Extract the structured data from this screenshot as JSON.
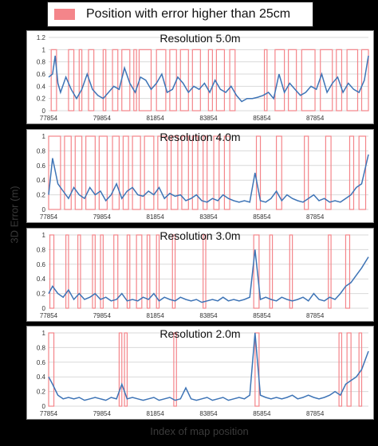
{
  "legend": {
    "label": "Position with error higher than 25cm",
    "color": "#f4858a"
  },
  "ylabel": "3D Error (m)",
  "xlabel": "Index of map position",
  "colors": {
    "line": "#3e74b6",
    "bars": "#f4858a",
    "grid": "#d9d9d9"
  },
  "chart_data": [
    {
      "type": "line",
      "title": "Resolution 5.0m",
      "x_ticks": [
        "77854",
        "79854",
        "81854",
        "83854",
        "85854",
        "87854"
      ],
      "y_ticks": [
        "0",
        "0.2",
        "0.4",
        "0.6",
        "0.8",
        "1",
        "1.2"
      ],
      "xlim": [
        77854,
        89854
      ],
      "ylim": [
        0,
        1.2
      ],
      "series": [
        {
          "type": "line",
          "x": [
            77854,
            78000,
            78100,
            78200,
            78300,
            78500,
            78700,
            78900,
            79100,
            79300,
            79500,
            79700,
            79900,
            80100,
            80300,
            80500,
            80700,
            80900,
            81100,
            81300,
            81500,
            81700,
            81900,
            82100,
            82300,
            82500,
            82700,
            82900,
            83100,
            83300,
            83500,
            83700,
            83900,
            84100,
            84300,
            84500,
            84700,
            84900,
            85100,
            85300,
            85500,
            85700,
            85900,
            86100,
            86300,
            86500,
            86700,
            86900,
            87100,
            87300,
            87500,
            87700,
            87900,
            88100,
            88300,
            88500,
            88700,
            88900,
            89100,
            89300,
            89500,
            89700,
            89854
          ],
          "y": [
            0.55,
            0.6,
            0.9,
            0.45,
            0.3,
            0.55,
            0.35,
            0.2,
            0.35,
            0.6,
            0.35,
            0.25,
            0.2,
            0.3,
            0.4,
            0.35,
            0.7,
            0.45,
            0.3,
            0.55,
            0.5,
            0.35,
            0.45,
            0.6,
            0.3,
            0.35,
            0.55,
            0.45,
            0.3,
            0.4,
            0.35,
            0.45,
            0.3,
            0.5,
            0.35,
            0.3,
            0.4,
            0.25,
            0.15,
            0.2,
            0.2,
            0.22,
            0.25,
            0.3,
            0.2,
            0.6,
            0.3,
            0.45,
            0.35,
            0.25,
            0.3,
            0.4,
            0.35,
            0.6,
            0.3,
            0.45,
            0.55,
            0.3,
            0.45,
            0.35,
            0.3,
            0.5,
            0.9
          ]
        },
        {
          "type": "bars",
          "threshold": 0.25,
          "spans": [
            [
              77950,
              78150
            ],
            [
              78600,
              78800
            ],
            [
              79000,
              79100
            ],
            [
              79350,
              79550
            ],
            [
              79900,
              80000
            ],
            [
              80250,
              80450
            ],
            [
              80600,
              80900
            ],
            [
              81050,
              81150
            ],
            [
              81250,
              81700
            ],
            [
              81900,
              82250
            ],
            [
              82400,
              82650
            ],
            [
              82800,
              83100
            ],
            [
              83250,
              83550
            ],
            [
              83850,
              84000
            ],
            [
              84150,
              84450
            ],
            [
              84650,
              84850
            ],
            [
              85950,
              86050
            ],
            [
              86350,
              86700
            ],
            [
              86850,
              87150
            ],
            [
              87350,
              87850
            ],
            [
              88050,
              88500
            ],
            [
              88650,
              88850
            ],
            [
              89050,
              89450
            ],
            [
              89600,
              89854
            ]
          ]
        }
      ]
    },
    {
      "type": "line",
      "title": "Resolution 4.0m",
      "x_ticks": [
        "77854",
        "79854",
        "81854",
        "83854",
        "85854",
        "87854"
      ],
      "y_ticks": [
        "0",
        "0.2",
        "0.4",
        "0.6",
        "0.8",
        "1"
      ],
      "xlim": [
        77854,
        89854
      ],
      "ylim": [
        0,
        1
      ],
      "series": [
        {
          "type": "line",
          "x": [
            77854,
            78000,
            78200,
            78400,
            78600,
            78800,
            79000,
            79200,
            79400,
            79600,
            79800,
            80000,
            80200,
            80400,
            80600,
            80800,
            81000,
            81200,
            81400,
            81600,
            81800,
            82000,
            82200,
            82400,
            82600,
            82800,
            83000,
            83200,
            83400,
            83600,
            83800,
            84000,
            84200,
            84400,
            84600,
            84800,
            85000,
            85200,
            85400,
            85600,
            85800,
            86000,
            86200,
            86400,
            86600,
            86800,
            87000,
            87200,
            87400,
            87600,
            87800,
            88000,
            88200,
            88400,
            88600,
            88800,
            89000,
            89200,
            89400,
            89600,
            89854
          ],
          "y": [
            0.2,
            0.7,
            0.35,
            0.25,
            0.15,
            0.3,
            0.2,
            0.15,
            0.3,
            0.2,
            0.25,
            0.12,
            0.2,
            0.35,
            0.15,
            0.25,
            0.3,
            0.2,
            0.18,
            0.25,
            0.2,
            0.3,
            0.15,
            0.22,
            0.18,
            0.2,
            0.12,
            0.15,
            0.2,
            0.12,
            0.1,
            0.15,
            0.12,
            0.2,
            0.15,
            0.12,
            0.1,
            0.12,
            0.1,
            0.5,
            0.12,
            0.1,
            0.15,
            0.25,
            0.12,
            0.2,
            0.15,
            0.12,
            0.1,
            0.15,
            0.2,
            0.12,
            0.15,
            0.1,
            0.12,
            0.1,
            0.15,
            0.2,
            0.3,
            0.35,
            0.75
          ]
        },
        {
          "type": "bars",
          "threshold": 0.25,
          "spans": [
            [
              77854,
              78300
            ],
            [
              78450,
              78700
            ],
            [
              78850,
              79100
            ],
            [
              79250,
              79600
            ],
            [
              79750,
              80050
            ],
            [
              80250,
              80500
            ],
            [
              80650,
              80850
            ],
            [
              81000,
              81300
            ],
            [
              81450,
              81800
            ],
            [
              81950,
              82300
            ],
            [
              82450,
              82700
            ],
            [
              82850,
              83100
            ],
            [
              83250,
              83450
            ],
            [
              83650,
              83800
            ],
            [
              84050,
              84250
            ],
            [
              84450,
              84650
            ],
            [
              85650,
              85800
            ],
            [
              86400,
              86600
            ],
            [
              87450,
              87600
            ],
            [
              88250,
              88450
            ],
            [
              89150,
              89300
            ],
            [
              89500,
              89750
            ]
          ]
        }
      ]
    },
    {
      "type": "line",
      "title": "Resolution 3.0m",
      "x_ticks": [
        "77854",
        "79854",
        "81854",
        "83854",
        "85854",
        "87854"
      ],
      "y_ticks": [
        "0",
        "0.2",
        "0.4",
        "0.6",
        "0.8",
        "1"
      ],
      "xlim": [
        77854,
        89854
      ],
      "ylim": [
        0,
        1
      ],
      "series": [
        {
          "type": "line",
          "x": [
            77854,
            78000,
            78200,
            78400,
            78600,
            78800,
            79000,
            79200,
            79400,
            79600,
            79800,
            80000,
            80200,
            80400,
            80600,
            80800,
            81000,
            81200,
            81400,
            81600,
            81800,
            82000,
            82200,
            82400,
            82600,
            82800,
            83000,
            83200,
            83400,
            83600,
            83800,
            84000,
            84200,
            84400,
            84600,
            84800,
            85000,
            85200,
            85400,
            85600,
            85800,
            86000,
            86200,
            86400,
            86600,
            86800,
            87000,
            87200,
            87400,
            87600,
            87800,
            88000,
            88200,
            88400,
            88600,
            88800,
            89000,
            89200,
            89400,
            89600,
            89854
          ],
          "y": [
            0.2,
            0.3,
            0.2,
            0.15,
            0.25,
            0.12,
            0.2,
            0.12,
            0.15,
            0.2,
            0.12,
            0.15,
            0.1,
            0.12,
            0.2,
            0.1,
            0.12,
            0.1,
            0.15,
            0.12,
            0.2,
            0.1,
            0.15,
            0.12,
            0.1,
            0.15,
            0.12,
            0.1,
            0.12,
            0.08,
            0.1,
            0.12,
            0.1,
            0.15,
            0.1,
            0.12,
            0.1,
            0.12,
            0.15,
            0.8,
            0.12,
            0.15,
            0.12,
            0.1,
            0.15,
            0.12,
            0.1,
            0.12,
            0.15,
            0.1,
            0.2,
            0.12,
            0.1,
            0.15,
            0.12,
            0.2,
            0.3,
            0.35,
            0.45,
            0.55,
            0.7
          ]
        },
        {
          "type": "bars",
          "threshold": 0.25,
          "spans": [
            [
              77900,
              78050
            ],
            [
              78500,
              78600
            ],
            [
              78950,
              79050
            ],
            [
              79500,
              79600
            ],
            [
              79800,
              79900
            ],
            [
              80300,
              80450
            ],
            [
              80800,
              80900
            ],
            [
              81150,
              81350
            ],
            [
              81550,
              81650
            ],
            [
              81900,
              82000
            ],
            [
              82500,
              82600
            ],
            [
              83650,
              83750
            ],
            [
              85550,
              85750
            ],
            [
              86150,
              86250
            ],
            [
              86900,
              87000
            ],
            [
              88350,
              88450
            ],
            [
              89000,
              89150
            ]
          ]
        }
      ]
    },
    {
      "type": "line",
      "title": "Resolution 2.0m",
      "x_ticks": [
        "77854",
        "79854",
        "81854",
        "83854",
        "85854",
        "87854"
      ],
      "y_ticks": [
        "0",
        "0.2",
        "0.4",
        "0.6",
        "0.8",
        "1"
      ],
      "xlim": [
        77854,
        89854
      ],
      "ylim": [
        0,
        1
      ],
      "series": [
        {
          "type": "line",
          "x": [
            77854,
            78000,
            78200,
            78400,
            78600,
            78800,
            79000,
            79200,
            79400,
            79600,
            79800,
            80000,
            80200,
            80400,
            80600,
            80800,
            81000,
            81200,
            81400,
            81600,
            81800,
            82000,
            82200,
            82400,
            82600,
            82800,
            83000,
            83200,
            83400,
            83600,
            83800,
            84000,
            84200,
            84400,
            84600,
            84800,
            85000,
            85200,
            85400,
            85600,
            85800,
            86000,
            86200,
            86400,
            86600,
            86800,
            87000,
            87200,
            87400,
            87600,
            87800,
            88000,
            88200,
            88400,
            88600,
            88800,
            89000,
            89200,
            89400,
            89600,
            89854
          ],
          "y": [
            0.4,
            0.3,
            0.15,
            0.1,
            0.12,
            0.1,
            0.12,
            0.08,
            0.1,
            0.12,
            0.1,
            0.08,
            0.12,
            0.1,
            0.3,
            0.1,
            0.12,
            0.1,
            0.08,
            0.1,
            0.12,
            0.08,
            0.1,
            0.12,
            0.08,
            0.1,
            0.25,
            0.1,
            0.08,
            0.1,
            0.12,
            0.08,
            0.1,
            0.12,
            0.08,
            0.1,
            0.12,
            0.1,
            0.15,
            1.0,
            0.15,
            0.12,
            0.1,
            0.12,
            0.1,
            0.12,
            0.15,
            0.1,
            0.12,
            0.15,
            0.12,
            0.1,
            0.12,
            0.15,
            0.2,
            0.15,
            0.3,
            0.35,
            0.4,
            0.5,
            0.75
          ]
        },
        {
          "type": "bars",
          "threshold": 0.25,
          "spans": [
            [
              77854,
              78050
            ],
            [
              80500,
              80600
            ],
            [
              80700,
              80800
            ],
            [
              82550,
              82650
            ],
            [
              85600,
              85750
            ],
            [
              88750,
              88850
            ],
            [
              89050,
              89200
            ],
            [
              89500,
              89600
            ]
          ]
        }
      ]
    }
  ]
}
